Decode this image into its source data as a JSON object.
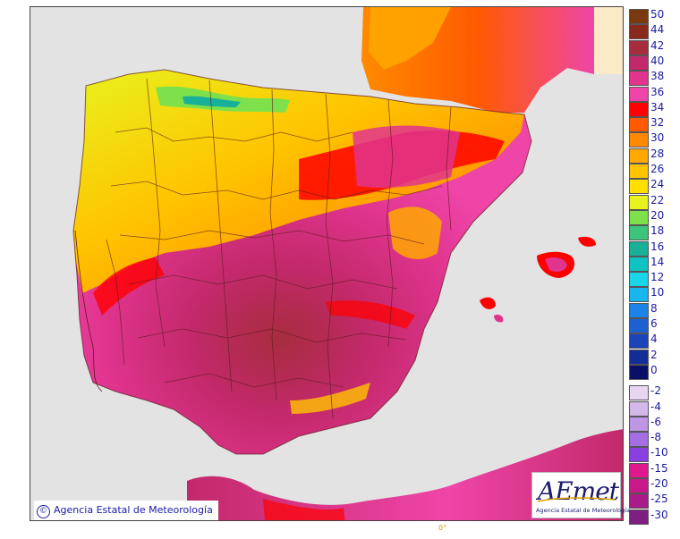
{
  "map": {
    "region": "Iberian Peninsula and Balearic Islands",
    "variable": "temperature",
    "colors": {
      "sea": "#e3e3e3",
      "land_outside": "#fbe9c8",
      "border": "#5a1c1c"
    }
  },
  "legend": {
    "entries": [
      {
        "label": "50",
        "color": "#7a3a10"
      },
      {
        "label": "44",
        "color": "#8b2a1c"
      },
      {
        "label": "42",
        "color": "#a72c3e"
      },
      {
        "label": "40",
        "color": "#c2296a"
      },
      {
        "label": "38",
        "color": "#e0348e"
      },
      {
        "label": "36",
        "color": "#ef45a8"
      },
      {
        "label": "34",
        "color": "#ff0000"
      },
      {
        "label": "32",
        "color": "#ff5a00"
      },
      {
        "label": "30",
        "color": "#ff8a00"
      },
      {
        "label": "28",
        "color": "#ffa800"
      },
      {
        "label": "26",
        "color": "#ffc400"
      },
      {
        "label": "24",
        "color": "#ffe000"
      },
      {
        "label": "22",
        "color": "#e8f21e"
      },
      {
        "label": "20",
        "color": "#7ee04a"
      },
      {
        "label": "18",
        "color": "#3cc47a"
      },
      {
        "label": "16",
        "color": "#19b09a"
      },
      {
        "label": "14",
        "color": "#10c3c3"
      },
      {
        "label": "12",
        "color": "#18d6e8"
      },
      {
        "label": "10",
        "color": "#1ab4ee"
      },
      {
        "label": "8",
        "color": "#1c84e8"
      },
      {
        "label": "6",
        "color": "#1c60d2"
      },
      {
        "label": "4",
        "color": "#1a44b8"
      },
      {
        "label": "2",
        "color": "#142c96"
      },
      {
        "label": "0",
        "color": "#0a1068"
      },
      {
        "label": "-2",
        "color": "#e6d6f2"
      },
      {
        "label": "-4",
        "color": "#d4b8ec"
      },
      {
        "label": "-6",
        "color": "#be96e4"
      },
      {
        "label": "-8",
        "color": "#a46ee2"
      },
      {
        "label": "-10",
        "color": "#8a3fe0"
      },
      {
        "label": "-15",
        "color": "#e0188e"
      },
      {
        "label": "-20",
        "color": "#c8198a"
      },
      {
        "label": "-25",
        "color": "#a81c8a"
      },
      {
        "label": "-30",
        "color": "#7e1e80"
      }
    ]
  },
  "copyright": {
    "symbol": "©",
    "text": "Agencia Estatal de Meteorología"
  },
  "logo": {
    "brand": "AEmet",
    "subtitle": "Agencia Estatal de Meteorología"
  },
  "degree_mark": "0°"
}
